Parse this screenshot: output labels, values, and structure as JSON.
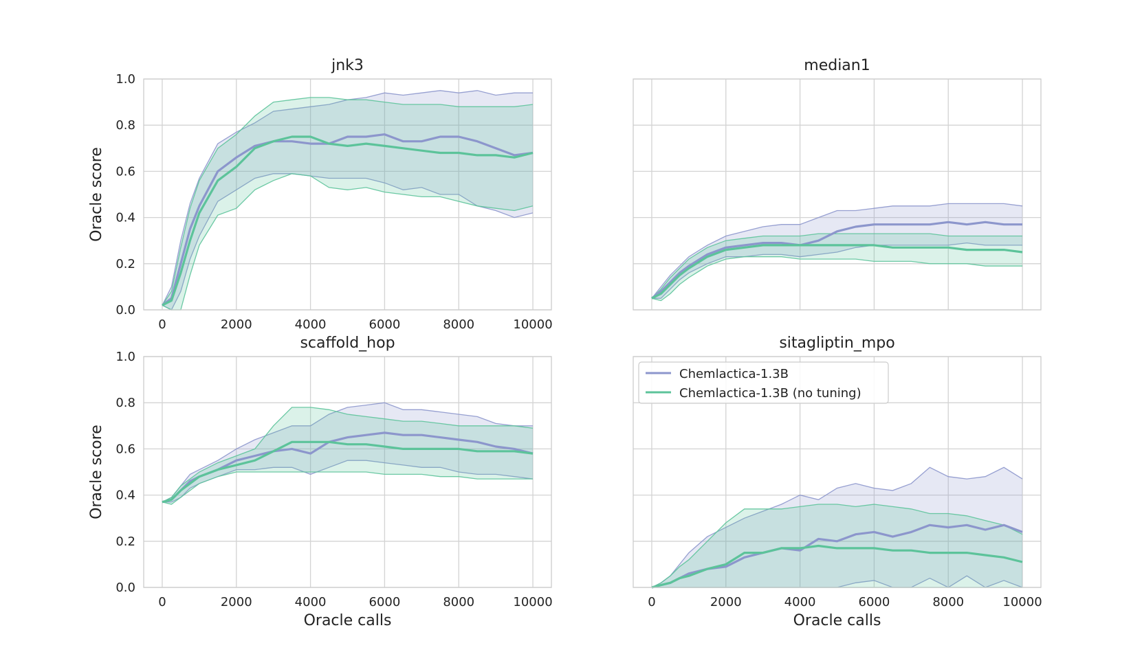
{
  "figure": {
    "shared_xlabel": "Oracle calls",
    "shared_ylabel": "Oracle score"
  },
  "colors": {
    "Chemlactica-1.3B": "#8c96cc",
    "Chemlactica-1.3B (no tuning)": "#5cc39a"
  },
  "legend": {
    "placement": "upper-left of sitagliptin_mpo panel",
    "entries": [
      "Chemlactica-1.3B",
      "Chemlactica-1.3B (no tuning)"
    ]
  },
  "chart_data": [
    {
      "type": "line",
      "title": "jnk3",
      "xlabel": "",
      "ylabel": "Oracle score",
      "xlim": [
        -500,
        10500
      ],
      "ylim": [
        0,
        1
      ],
      "xticks": [
        "0",
        "2000",
        "4000",
        "6000",
        "8000",
        "10000"
      ],
      "yticks": [
        "0.0",
        "0.2",
        "0.4",
        "0.6",
        "0.8",
        "1.0"
      ],
      "grid": true,
      "x": [
        0,
        250,
        500,
        750,
        1000,
        1500,
        2000,
        2500,
        3000,
        3500,
        4000,
        4500,
        5000,
        5500,
        6000,
        6500,
        7000,
        7500,
        8000,
        8500,
        9000,
        9500,
        10000
      ],
      "series": [
        {
          "name": "Chemlactica-1.3B",
          "mean": [
            0.02,
            0.05,
            0.2,
            0.35,
            0.45,
            0.6,
            0.66,
            0.71,
            0.73,
            0.73,
            0.72,
            0.72,
            0.75,
            0.75,
            0.76,
            0.73,
            0.73,
            0.75,
            0.75,
            0.73,
            0.7,
            0.67,
            0.68
          ],
          "lower": [
            0.02,
            0.0,
            0.08,
            0.22,
            0.32,
            0.47,
            0.52,
            0.57,
            0.59,
            0.59,
            0.58,
            0.57,
            0.57,
            0.57,
            0.55,
            0.52,
            0.53,
            0.5,
            0.5,
            0.45,
            0.43,
            0.4,
            0.42
          ],
          "upper": [
            0.02,
            0.1,
            0.3,
            0.46,
            0.57,
            0.72,
            0.77,
            0.81,
            0.86,
            0.87,
            0.88,
            0.89,
            0.91,
            0.92,
            0.94,
            0.93,
            0.94,
            0.95,
            0.94,
            0.95,
            0.93,
            0.94,
            0.94
          ]
        },
        {
          "name": "Chemlactica-1.3B (no tuning)",
          "mean": [
            0.02,
            0.04,
            0.16,
            0.3,
            0.42,
            0.56,
            0.62,
            0.7,
            0.73,
            0.75,
            0.75,
            0.72,
            0.71,
            0.72,
            0.71,
            0.7,
            0.69,
            0.68,
            0.68,
            0.67,
            0.67,
            0.66,
            0.68
          ],
          "lower": [
            0.02,
            0.0,
            0.0,
            0.15,
            0.28,
            0.41,
            0.44,
            0.52,
            0.56,
            0.59,
            0.58,
            0.53,
            0.52,
            0.53,
            0.51,
            0.5,
            0.49,
            0.49,
            0.47,
            0.45,
            0.44,
            0.43,
            0.45
          ],
          "upper": [
            0.02,
            0.08,
            0.27,
            0.44,
            0.56,
            0.7,
            0.76,
            0.84,
            0.9,
            0.91,
            0.92,
            0.92,
            0.91,
            0.91,
            0.9,
            0.89,
            0.89,
            0.89,
            0.88,
            0.88,
            0.88,
            0.88,
            0.89
          ]
        }
      ]
    },
    {
      "type": "line",
      "title": "median1",
      "xlabel": "",
      "ylabel": "",
      "xlim": [
        -500,
        10500
      ],
      "ylim": [
        0,
        1
      ],
      "xticks": [],
      "yticks": [],
      "grid": true,
      "x": [
        0,
        250,
        500,
        750,
        1000,
        1500,
        2000,
        2500,
        3000,
        3500,
        4000,
        4500,
        5000,
        5500,
        6000,
        6500,
        7000,
        7500,
        8000,
        8500,
        9000,
        9500,
        10000
      ],
      "series": [
        {
          "name": "Chemlactica-1.3B",
          "mean": [
            0.05,
            0.08,
            0.12,
            0.16,
            0.19,
            0.24,
            0.27,
            0.28,
            0.29,
            0.29,
            0.28,
            0.3,
            0.34,
            0.36,
            0.37,
            0.37,
            0.37,
            0.37,
            0.38,
            0.37,
            0.38,
            0.37,
            0.37
          ],
          "lower": [
            0.05,
            0.05,
            0.09,
            0.13,
            0.16,
            0.2,
            0.23,
            0.23,
            0.24,
            0.24,
            0.23,
            0.24,
            0.25,
            0.27,
            0.28,
            0.28,
            0.28,
            0.28,
            0.28,
            0.29,
            0.28,
            0.28,
            0.28
          ],
          "upper": [
            0.05,
            0.1,
            0.15,
            0.19,
            0.23,
            0.28,
            0.32,
            0.34,
            0.36,
            0.37,
            0.37,
            0.4,
            0.43,
            0.43,
            0.44,
            0.45,
            0.45,
            0.45,
            0.46,
            0.46,
            0.46,
            0.46,
            0.45
          ]
        },
        {
          "name": "Chemlactica-1.3B (no tuning)",
          "mean": [
            0.05,
            0.07,
            0.11,
            0.15,
            0.18,
            0.23,
            0.26,
            0.27,
            0.28,
            0.28,
            0.28,
            0.28,
            0.28,
            0.28,
            0.28,
            0.27,
            0.27,
            0.27,
            0.27,
            0.26,
            0.26,
            0.26,
            0.25
          ],
          "lower": [
            0.05,
            0.04,
            0.07,
            0.11,
            0.14,
            0.19,
            0.22,
            0.23,
            0.23,
            0.23,
            0.22,
            0.22,
            0.22,
            0.22,
            0.21,
            0.21,
            0.21,
            0.2,
            0.2,
            0.2,
            0.19,
            0.19,
            0.19
          ],
          "upper": [
            0.05,
            0.09,
            0.14,
            0.18,
            0.22,
            0.27,
            0.3,
            0.31,
            0.32,
            0.32,
            0.32,
            0.33,
            0.33,
            0.33,
            0.33,
            0.33,
            0.33,
            0.33,
            0.32,
            0.32,
            0.32,
            0.32,
            0.32
          ]
        }
      ]
    },
    {
      "type": "line",
      "title": "scaffold_hop",
      "xlabel": "Oracle calls",
      "ylabel": "Oracle score",
      "xlim": [
        -500,
        10500
      ],
      "ylim": [
        0,
        1
      ],
      "xticks": [
        "0",
        "2000",
        "4000",
        "6000",
        "8000",
        "10000"
      ],
      "yticks": [
        "0.0",
        "0.2",
        "0.4",
        "0.6",
        "0.8",
        "1.0"
      ],
      "grid": true,
      "x": [
        0,
        250,
        500,
        750,
        1000,
        1500,
        2000,
        2500,
        3000,
        3500,
        4000,
        4500,
        5000,
        5500,
        6000,
        6500,
        7000,
        7500,
        8000,
        8500,
        9000,
        9500,
        10000
      ],
      "series": [
        {
          "name": "Chemlactica-1.3B",
          "mean": [
            0.37,
            0.38,
            0.42,
            0.46,
            0.48,
            0.51,
            0.55,
            0.57,
            0.59,
            0.6,
            0.58,
            0.63,
            0.65,
            0.66,
            0.67,
            0.66,
            0.66,
            0.65,
            0.64,
            0.63,
            0.61,
            0.6,
            0.58
          ],
          "lower": [
            0.37,
            0.37,
            0.39,
            0.43,
            0.45,
            0.48,
            0.51,
            0.51,
            0.52,
            0.52,
            0.49,
            0.52,
            0.55,
            0.55,
            0.54,
            0.53,
            0.52,
            0.52,
            0.5,
            0.49,
            0.49,
            0.48,
            0.47
          ],
          "upper": [
            0.37,
            0.39,
            0.44,
            0.49,
            0.51,
            0.55,
            0.6,
            0.64,
            0.67,
            0.7,
            0.7,
            0.75,
            0.78,
            0.79,
            0.8,
            0.77,
            0.77,
            0.76,
            0.75,
            0.74,
            0.71,
            0.7,
            0.7
          ]
        },
        {
          "name": "Chemlactica-1.3B (no tuning)",
          "mean": [
            0.37,
            0.38,
            0.42,
            0.45,
            0.48,
            0.51,
            0.53,
            0.55,
            0.59,
            0.63,
            0.63,
            0.63,
            0.62,
            0.62,
            0.61,
            0.6,
            0.6,
            0.6,
            0.6,
            0.59,
            0.59,
            0.59,
            0.58
          ],
          "lower": [
            0.37,
            0.36,
            0.39,
            0.42,
            0.45,
            0.48,
            0.5,
            0.5,
            0.5,
            0.5,
            0.5,
            0.5,
            0.5,
            0.5,
            0.49,
            0.49,
            0.49,
            0.48,
            0.48,
            0.47,
            0.47,
            0.47,
            0.47
          ],
          "upper": [
            0.37,
            0.39,
            0.44,
            0.47,
            0.5,
            0.54,
            0.57,
            0.6,
            0.7,
            0.78,
            0.78,
            0.77,
            0.75,
            0.74,
            0.73,
            0.72,
            0.72,
            0.71,
            0.7,
            0.7,
            0.7,
            0.7,
            0.69
          ]
        }
      ]
    },
    {
      "type": "line",
      "title": "sitagliptin_mpo",
      "xlabel": "Oracle calls",
      "ylabel": "",
      "xlim": [
        -500,
        10500
      ],
      "ylim": [
        0,
        1
      ],
      "xticks": [
        "0",
        "2000",
        "4000",
        "6000",
        "8000",
        "10000"
      ],
      "yticks": [],
      "grid": true,
      "x": [
        0,
        250,
        500,
        750,
        1000,
        1500,
        2000,
        2500,
        3000,
        3500,
        4000,
        4500,
        5000,
        5500,
        6000,
        6500,
        7000,
        7500,
        8000,
        8500,
        9000,
        9500,
        10000
      ],
      "series": [
        {
          "name": "Chemlactica-1.3B",
          "mean": [
            0.0,
            0.01,
            0.02,
            0.04,
            0.06,
            0.08,
            0.09,
            0.13,
            0.15,
            0.17,
            0.16,
            0.21,
            0.2,
            0.23,
            0.24,
            0.22,
            0.24,
            0.27,
            0.26,
            0.27,
            0.25,
            0.27,
            0.24
          ],
          "lower": [
            0.0,
            0.0,
            0.0,
            0.0,
            0.0,
            0.0,
            0.0,
            0.0,
            0.0,
            0.0,
            0.0,
            0.0,
            0.0,
            0.02,
            0.03,
            0.0,
            0.0,
            0.04,
            0.0,
            0.05,
            0.0,
            0.03,
            0.0
          ],
          "upper": [
            0.0,
            0.02,
            0.05,
            0.1,
            0.15,
            0.22,
            0.26,
            0.3,
            0.33,
            0.36,
            0.4,
            0.38,
            0.43,
            0.45,
            0.43,
            0.42,
            0.45,
            0.52,
            0.48,
            0.47,
            0.48,
            0.52,
            0.47
          ]
        },
        {
          "name": "Chemlactica-1.3B (no tuning)",
          "mean": [
            0.0,
            0.01,
            0.02,
            0.04,
            0.05,
            0.08,
            0.1,
            0.15,
            0.15,
            0.17,
            0.17,
            0.18,
            0.17,
            0.17,
            0.17,
            0.16,
            0.16,
            0.15,
            0.15,
            0.15,
            0.14,
            0.13,
            0.11
          ],
          "lower": [
            0.0,
            0.0,
            0.0,
            0.0,
            0.0,
            0.0,
            0.0,
            0.0,
            0.0,
            0.0,
            0.0,
            0.0,
            0.0,
            0.0,
            0.0,
            0.0,
            0.0,
            0.0,
            0.0,
            0.0,
            0.0,
            0.0,
            0.0
          ],
          "upper": [
            0.0,
            0.02,
            0.05,
            0.09,
            0.12,
            0.2,
            0.28,
            0.34,
            0.34,
            0.34,
            0.35,
            0.36,
            0.36,
            0.35,
            0.36,
            0.35,
            0.34,
            0.32,
            0.32,
            0.31,
            0.29,
            0.27,
            0.23
          ]
        }
      ]
    }
  ]
}
